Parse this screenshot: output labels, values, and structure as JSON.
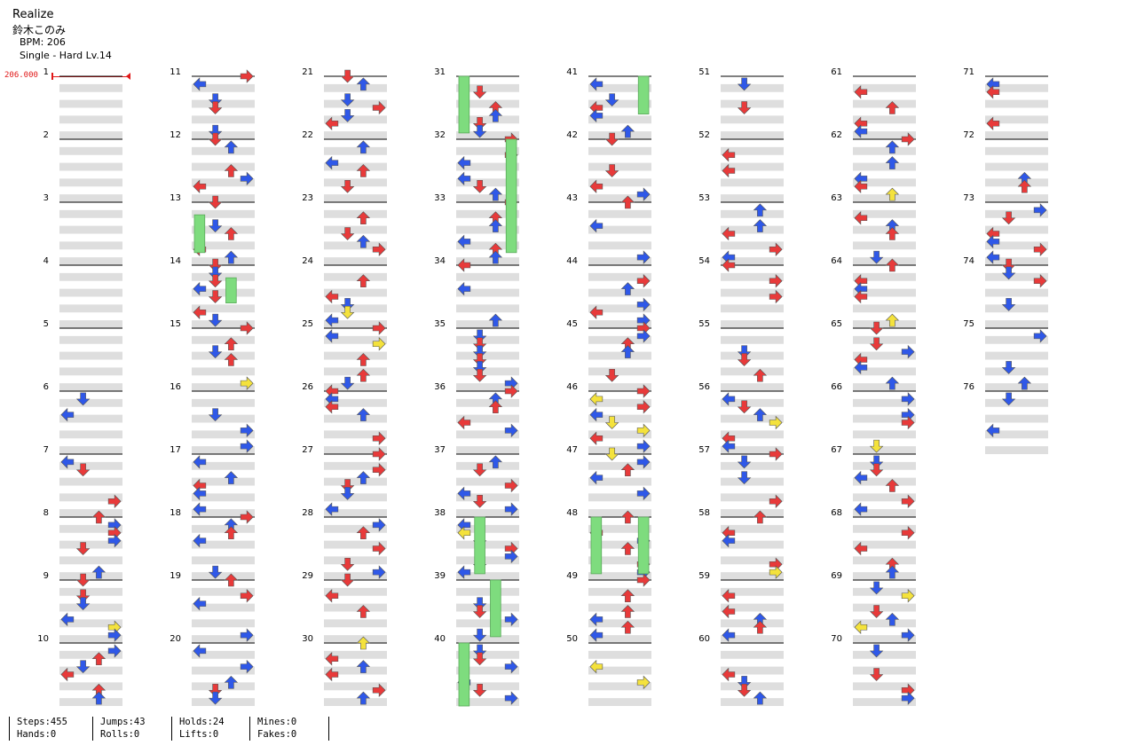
{
  "song": {
    "title": "Realize",
    "artist": "鈴木このみ",
    "bpm_label": "BPM: 206",
    "difficulty": "Single - Hard  Lv.14",
    "bpm_change_label": "206.000"
  },
  "chart_view": {
    "total_measures": 76,
    "measures_per_column": 10,
    "lanes": [
      "left",
      "down",
      "up",
      "right"
    ],
    "colors": {
      "left": "#e83a3a",
      "down": "#2f58e8",
      "up": "#e83a3a",
      "right": "#e83a3a",
      "quarter_red": "#e83a3a",
      "eighth_blue": "#2f58e8",
      "sixteenth_yellow": "#f4e23c",
      "hold_green": "#7edc7e",
      "band_gray": "#dedede",
      "bpm_red": "#e01818"
    },
    "columns": [
      {
        "measures": [
          1,
          2,
          3,
          4,
          5,
          6,
          7,
          8,
          9,
          10
        ]
      },
      {
        "measures": [
          11,
          12,
          13,
          14,
          15,
          16,
          17,
          18,
          19,
          20
        ]
      },
      {
        "measures": [
          21,
          22,
          23,
          24,
          25,
          26,
          27,
          28,
          29,
          30
        ]
      },
      {
        "measures": [
          31,
          32,
          33,
          34,
          35,
          36,
          37,
          38,
          39,
          40
        ]
      },
      {
        "measures": [
          41,
          42,
          43,
          44,
          45,
          46,
          47,
          48,
          49,
          50
        ]
      },
      {
        "measures": [
          51,
          52,
          53,
          54,
          55,
          56,
          57,
          58,
          59,
          60
        ]
      },
      {
        "measures": [
          61,
          62,
          63,
          64,
          65,
          66,
          67,
          68,
          69,
          70
        ]
      },
      {
        "measures": [
          71,
          72,
          73,
          74,
          75,
          76
        ]
      }
    ]
  },
  "stats": {
    "steps": "Steps:455",
    "jumps": "Jumps:43",
    "holds": "Holds:24",
    "mines": "Mines:0",
    "hands": "Hands:0",
    "rolls": "Rolls:0",
    "lifts": "Lifts:0",
    "fakes": "Fakes:0"
  }
}
